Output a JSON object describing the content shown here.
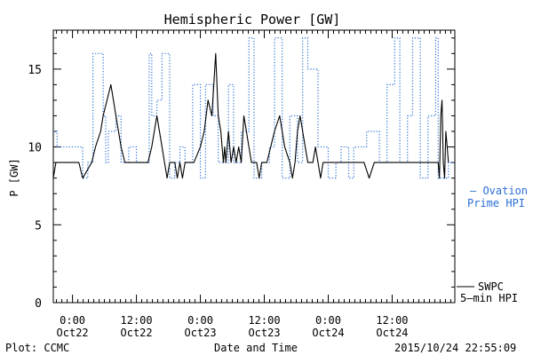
{
  "chart_data": {
    "type": "line",
    "title": "Hemispheric Power [GW]",
    "ylabel": "P [GW]",
    "xlabel": "Date and Time",
    "ylim": [
      0,
      17.5
    ],
    "yticks": [
      0,
      5,
      10,
      15
    ],
    "xlim": [
      -0.15,
      2.99
    ],
    "x_unit": "days since 2015-10-22 00:00",
    "xticks": [
      {
        "x": 0.0,
        "line1": "0:00",
        "line2": "Oct22"
      },
      {
        "x": 0.5,
        "line1": "12:00",
        "line2": "Oct22"
      },
      {
        "x": 1.0,
        "line1": "0:00",
        "line2": "Oct23"
      },
      {
        "x": 1.5,
        "line1": "12:00",
        "line2": "Oct23"
      },
      {
        "x": 2.0,
        "line1": "0:00",
        "line2": "Oct24"
      },
      {
        "x": 2.5,
        "line1": "12:00",
        "line2": "Oct24"
      }
    ],
    "grid": false,
    "series": [
      {
        "name": "Ovation Prime HPI",
        "color": "#2a6fd6",
        "style": "dotted-step",
        "x": [
          -0.15,
          -0.12,
          -0.05,
          0.08,
          0.12,
          0.16,
          0.24,
          0.26,
          0.28,
          0.34,
          0.38,
          0.44,
          0.5,
          0.56,
          0.6,
          0.62,
          0.66,
          0.7,
          0.76,
          0.8,
          0.84,
          0.88,
          0.94,
          1.0,
          1.04,
          1.1,
          1.14,
          1.22,
          1.26,
          1.32,
          1.38,
          1.42,
          1.48,
          1.54,
          1.58,
          1.64,
          1.7,
          1.76,
          1.8,
          1.84,
          1.92,
          2.0,
          2.06,
          2.1,
          2.16,
          2.2,
          2.3,
          2.4,
          2.46,
          2.52,
          2.56,
          2.62,
          2.66,
          2.72,
          2.78,
          2.84,
          2.86,
          2.9,
          2.94
        ],
        "y": [
          11,
          10,
          10,
          8,
          9,
          16,
          12,
          9,
          11,
          12,
          9,
          10,
          9,
          9,
          16,
          12,
          13,
          16,
          8,
          9,
          10,
          9,
          14,
          8,
          14,
          12,
          9,
          14,
          9,
          11,
          17,
          8,
          9,
          10,
          17,
          8,
          12,
          9,
          17,
          15,
          10,
          8,
          9,
          10,
          8,
          10,
          11,
          9,
          14,
          17,
          9,
          12,
          17,
          8,
          12,
          17,
          8,
          8,
          9
        ]
      },
      {
        "name": "SWPC 5-min HPI",
        "color": "#000000",
        "style": "solid",
        "x": [
          -0.15,
          -0.13,
          -0.11,
          -0.05,
          0.05,
          0.08,
          0.15,
          0.18,
          0.22,
          0.24,
          0.27,
          0.3,
          0.32,
          0.34,
          0.36,
          0.38,
          0.41,
          0.44,
          0.47,
          0.5,
          0.53,
          0.56,
          0.59,
          0.62,
          0.64,
          0.66,
          0.68,
          0.7,
          0.72,
          0.74,
          0.76,
          0.78,
          0.8,
          0.82,
          0.84,
          0.86,
          0.88,
          0.9,
          0.92,
          0.95,
          1.0,
          1.03,
          1.06,
          1.09,
          1.12,
          1.14,
          1.16,
          1.17,
          1.18,
          1.19,
          1.2,
          1.22,
          1.24,
          1.26,
          1.28,
          1.3,
          1.32,
          1.34,
          1.36,
          1.38,
          1.4,
          1.42,
          1.44,
          1.46,
          1.48,
          1.5,
          1.52,
          1.55,
          1.58,
          1.62,
          1.66,
          1.7,
          1.72,
          1.74,
          1.76,
          1.78,
          1.8,
          1.82,
          1.84,
          1.86,
          1.88,
          1.9,
          1.92,
          1.94,
          1.96,
          2.0,
          2.04,
          2.08,
          2.12,
          2.16,
          2.2,
          2.24,
          2.28,
          2.32,
          2.36,
          2.4,
          2.44,
          2.48,
          2.52,
          2.56,
          2.6,
          2.64,
          2.68,
          2.72,
          2.76,
          2.8,
          2.82,
          2.84,
          2.86,
          2.87,
          2.88,
          2.89,
          2.9,
          2.91,
          2.92,
          2.93,
          2.94
        ],
        "y": [
          8,
          9,
          9,
          9,
          9,
          8,
          9,
          10,
          11,
          12,
          13,
          14,
          13,
          12,
          11,
          10,
          9,
          9,
          9,
          9,
          9,
          9,
          9,
          10,
          11,
          12,
          11,
          10,
          9,
          8,
          9,
          9,
          9,
          8,
          9,
          8,
          9,
          9,
          9,
          9,
          10,
          11,
          13,
          12,
          16,
          12,
          11,
          10,
          9,
          10,
          9,
          11,
          9,
          10,
          9,
          10,
          9,
          12,
          11,
          10,
          9,
          9,
          9,
          8,
          9,
          9,
          9,
          10,
          11,
          12,
          10,
          9,
          8,
          9,
          11,
          12,
          11,
          10,
          9,
          9,
          9,
          10,
          9,
          8,
          9,
          9,
          9,
          9,
          9,
          9,
          9,
          9,
          9,
          8,
          9,
          9,
          9,
          9,
          9,
          9,
          9,
          9,
          9,
          9,
          9,
          9,
          9,
          9,
          9,
          8,
          12,
          13,
          9,
          8,
          11,
          10,
          9
        ]
      }
    ],
    "legend": [
      {
        "line1": "– Ovation",
        "line2": "Prime HPI",
        "placement": "right"
      },
      {
        "line1": "SWPC",
        "line2": "5–min HPI",
        "placement": "bottom-right"
      }
    ]
  },
  "footer": {
    "left": "Plot: CCMC",
    "center": "Date and Time",
    "right": "2015/10/24 22:55:09"
  }
}
